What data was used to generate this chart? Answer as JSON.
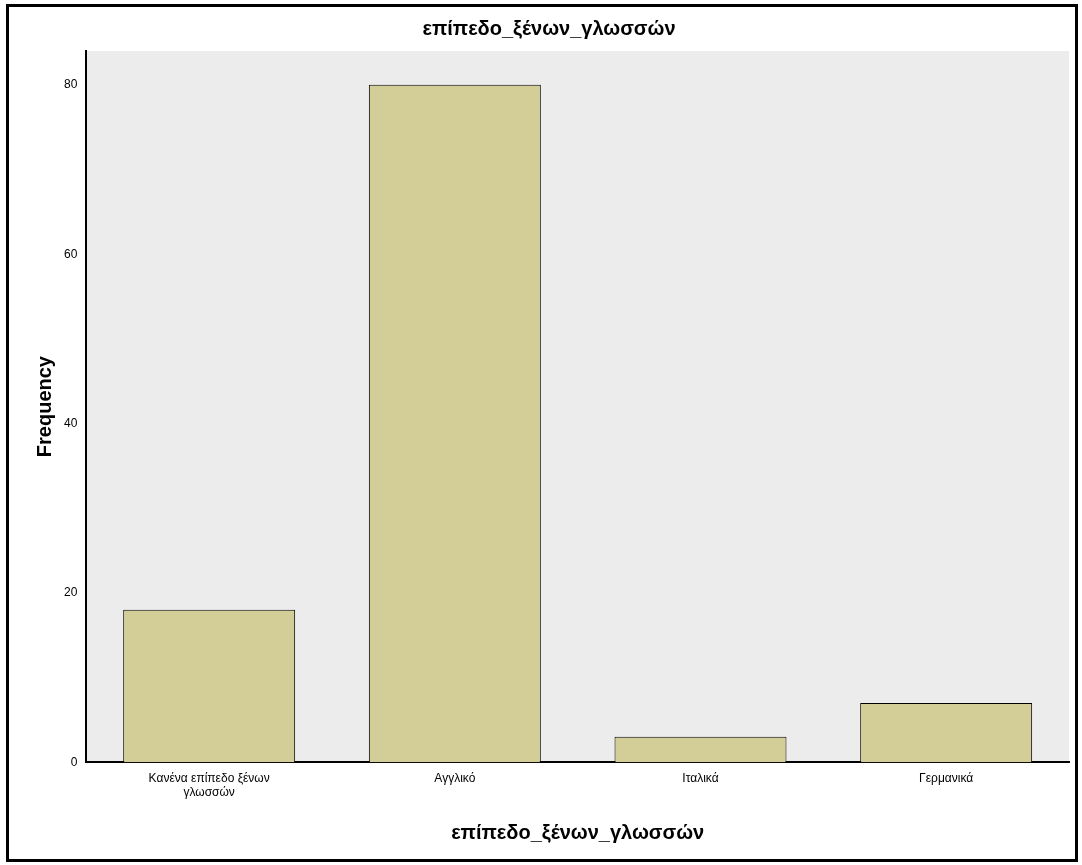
{
  "chart_data": {
    "type": "bar",
    "title": "επίπεδο_ξένων_γλωσσών",
    "xlabel": "επίπεδο_ξένων_γλωσσών",
    "ylabel": "Frequency",
    "categories": [
      "Κανένα επίπεδο ξένων γλωσσών",
      "Αγγλικό",
      "Ιταλικά",
      "Γερμανικά"
    ],
    "values": [
      18,
      80,
      3,
      7
    ],
    "color": "#d3ce97",
    "ylim": [
      0,
      84
    ],
    "yticks": [
      0,
      20,
      40,
      60,
      80
    ],
    "grid": false,
    "legend": false
  }
}
